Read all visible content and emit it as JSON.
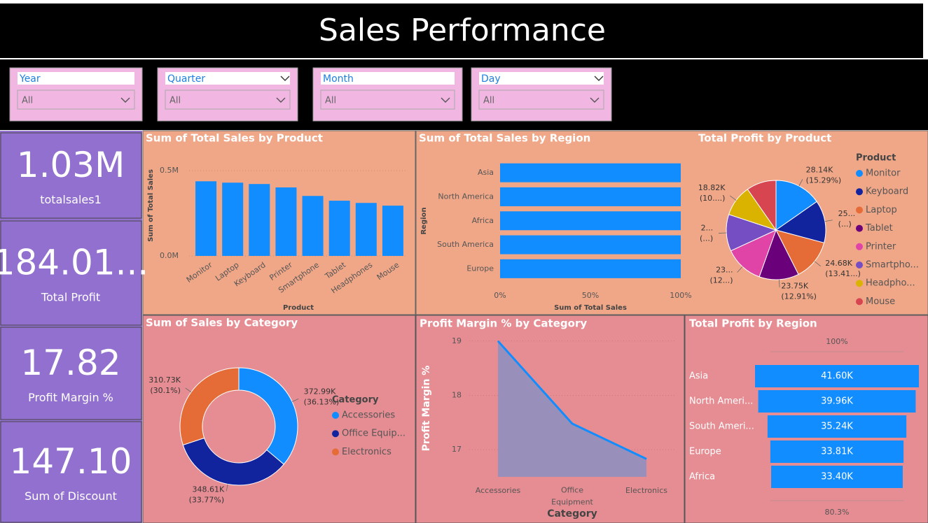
{
  "header": {
    "title": "Sales Performance"
  },
  "slicers": [
    {
      "label": "Year",
      "value": "All"
    },
    {
      "label": "Quarter",
      "value": "All"
    },
    {
      "label": "Month",
      "value": "All"
    },
    {
      "label": "Day",
      "value": "All"
    }
  ],
  "cards": [
    {
      "value": "1.03M",
      "label": "totalsales1"
    },
    {
      "value": "184.01...",
      "label": "Total Profit"
    },
    {
      "value": "17.82",
      "label": "Profit Margin %"
    },
    {
      "value": "147.10",
      "label": "Sum of Discount"
    }
  ],
  "chart_data": [
    {
      "type": "bar",
      "title": "Sum of Total Sales by Product",
      "x_label": "Product",
      "y_label": "Sum of Total Sales",
      "categories": [
        "Monitor",
        "Laptop",
        "Keyboard",
        "Printer",
        "Smartphone",
        "Tablet",
        "Headphones",
        "Mouse"
      ],
      "values": [
        438000,
        430000,
        422000,
        402000,
        352000,
        324000,
        311000,
        295000
      ],
      "color": "#118dff",
      "ylim": [
        0,
        550000
      ],
      "yticks": [
        {
          "value": 0,
          "label": "0.0M"
        },
        {
          "value": 500000,
          "label": "0.5M"
        }
      ],
      "grid": true
    },
    {
      "type": "hbar",
      "title": "Sum of Total Sales by Region",
      "x_label": "Sum of Total Sales",
      "y_label": "Region",
      "categories": [
        "Asia",
        "North America",
        "Africa",
        "South America",
        "Europe"
      ],
      "values": [
        100,
        100,
        100,
        100,
        100
      ],
      "color": "#118dff",
      "xlim": [
        0,
        100
      ],
      "xticks": [
        {
          "value": 0,
          "label": "0%"
        },
        {
          "value": 50,
          "label": "50%"
        },
        {
          "value": 100,
          "label": "100%"
        }
      ]
    },
    {
      "type": "pie",
      "title": "Total Profit by Product",
      "legend_title": "Product",
      "categories": [
        "Monitor",
        "Keyboard",
        "Laptop",
        "Tablet",
        "Printer",
        "Smartpho...",
        "Headpho...",
        "Mouse"
      ],
      "values": [
        28140,
        25500,
        24680,
        23750,
        23300,
        22000,
        18820,
        17820
      ],
      "value_labels": [
        "28.14K (15.29%)",
        "25... (...)",
        "24.68K (13.41...)",
        "23.75K (12.91%)",
        "23... (12...)",
        "2... (...)",
        "18.82K (10....)",
        null
      ],
      "colors": [
        "#118dff",
        "#12239e",
        "#e66c37",
        "#6b007b",
        "#e044a7",
        "#744ec2",
        "#d9b300",
        "#d64550"
      ]
    },
    {
      "type": "donut",
      "title": "Sum of Sales by Category",
      "legend_title": "Category",
      "categories": [
        "Accessories",
        "Office Equip...",
        "Electronics"
      ],
      "values": [
        372990,
        348610,
        310730
      ],
      "value_labels": [
        "372.99K (36.13%)",
        "348.61K (33.77%)",
        "310.73K (30.1%)"
      ],
      "colors": [
        "#118dff",
        "#12239e",
        "#e66c37"
      ]
    },
    {
      "type": "area",
      "title": "Profit Margin % by Category",
      "x_label": "Category",
      "y_label": "Profit Margin %",
      "categories": [
        "Accessories",
        "Office Equipment",
        "Electronics"
      ],
      "values": [
        19.0,
        17.48,
        16.83
      ],
      "color": "#118dff",
      "fill": "#8f90c0",
      "ylim": [
        16.5,
        19.1
      ],
      "yticks": [
        17,
        18,
        19
      ],
      "grid": true
    },
    {
      "type": "funnel",
      "title": "Total Profit by Region",
      "categories": [
        "Asia",
        "North Ameri...",
        "South Ameri...",
        "Europe",
        "Africa"
      ],
      "values": [
        41600,
        39960,
        35240,
        33810,
        33400
      ],
      "value_labels": [
        "41.60K",
        "39.96K",
        "35.24K",
        "33.81K",
        "33.40K"
      ],
      "top_label": "100%",
      "bottom_label": "80.3%",
      "color": "#118dff"
    }
  ]
}
